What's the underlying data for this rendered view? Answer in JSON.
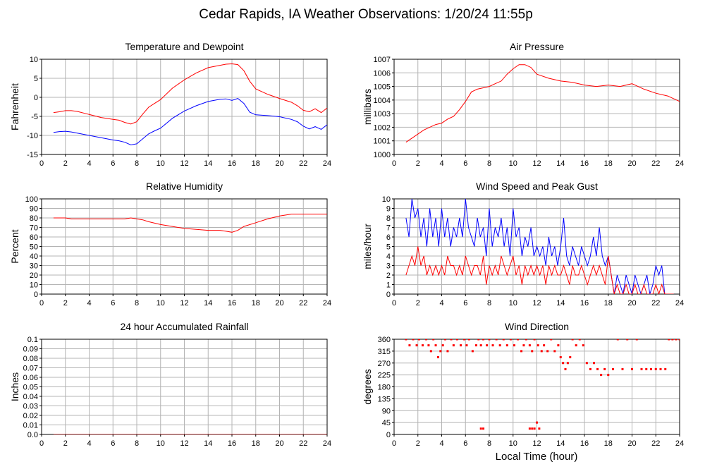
{
  "page": {
    "title": "Cedar Rapids, IA Weather Observations: 1/20/24 11:55p",
    "xlabel": "Local Time (hour)"
  },
  "colors": {
    "red": "#ff0000",
    "blue": "#0000ff",
    "grid": "#b4b4b4",
    "frame": "#000000"
  },
  "chart_data": [
    {
      "type": "line",
      "title": "Temperature and Dewpoint",
      "ylabel": "Fahrenheit",
      "xlim": [
        0,
        24
      ],
      "ylim": [
        -15,
        10
      ],
      "x_ticks": [
        0,
        2,
        4,
        6,
        8,
        10,
        12,
        14,
        16,
        18,
        20,
        22,
        24
      ],
      "y_ticks": [
        -15,
        -10,
        -5,
        0,
        5,
        10
      ],
      "grid": true,
      "legend": "none",
      "series": [
        {
          "color": "#ff0000",
          "x": [
            1.0,
            1.5,
            2.0,
            2.5,
            3.0,
            4.0,
            5.0,
            6.0,
            6.5,
            7.0,
            7.5,
            8.0,
            8.5,
            9.0,
            9.5,
            10.0,
            11.0,
            12.0,
            13.0,
            14.0,
            15.0,
            15.5,
            16.0,
            16.5,
            17.0,
            17.5,
            18.0,
            19.0,
            20.0,
            21.0,
            21.5,
            22.0,
            22.5,
            23.0,
            23.5,
            24.0
          ],
          "y": [
            -4.0,
            -3.8,
            -3.5,
            -3.5,
            -3.7,
            -4.5,
            -5.3,
            -5.8,
            -6.0,
            -6.6,
            -7.0,
            -6.4,
            -4.4,
            -2.6,
            -1.6,
            -0.6,
            2.4,
            4.6,
            6.4,
            7.8,
            8.4,
            8.7,
            8.8,
            8.6,
            7.0,
            4.2,
            2.2,
            0.8,
            -0.3,
            -1.3,
            -2.2,
            -3.4,
            -3.8,
            -3.0,
            -4.0,
            -2.8
          ]
        },
        {
          "color": "#0000ff",
          "x": [
            1.0,
            1.5,
            2.0,
            2.5,
            3.0,
            4.0,
            5.0,
            6.0,
            6.5,
            7.0,
            7.5,
            8.0,
            8.5,
            9.0,
            9.5,
            10.0,
            11.0,
            12.0,
            13.0,
            14.0,
            15.0,
            15.5,
            16.0,
            16.5,
            17.0,
            17.5,
            18.0,
            19.0,
            20.0,
            21.0,
            21.5,
            22.0,
            22.5,
            23.0,
            23.5,
            24.0
          ],
          "y": [
            -9.2,
            -9.0,
            -8.9,
            -9.1,
            -9.4,
            -10.0,
            -10.6,
            -11.2,
            -11.4,
            -11.8,
            -12.5,
            -12.2,
            -10.9,
            -9.6,
            -8.8,
            -8.1,
            -5.5,
            -3.6,
            -2.2,
            -1.1,
            -0.5,
            -0.4,
            -0.8,
            -0.3,
            -1.6,
            -3.9,
            -4.6,
            -4.8,
            -5.1,
            -5.8,
            -6.4,
            -7.6,
            -8.3,
            -7.7,
            -8.4,
            -7.2
          ]
        }
      ]
    },
    {
      "type": "line",
      "title": "Air Pressure",
      "ylabel": "millibars",
      "xlim": [
        0,
        24
      ],
      "ylim": [
        1000,
        1007
      ],
      "x_ticks": [
        0,
        2,
        4,
        6,
        8,
        10,
        12,
        14,
        16,
        18,
        20,
        22,
        24
      ],
      "y_ticks": [
        1000,
        1001,
        1002,
        1003,
        1004,
        1005,
        1006,
        1007
      ],
      "grid": true,
      "legend": "none",
      "series": [
        {
          "color": "#ff0000",
          "x": [
            1.0,
            1.5,
            2.0,
            2.5,
            3.0,
            3.5,
            4.0,
            4.5,
            5.0,
            5.5,
            6.0,
            6.5,
            7.0,
            7.5,
            8.0,
            8.5,
            9.0,
            9.5,
            10.0,
            10.5,
            11.0,
            11.5,
            12.0,
            13.0,
            14.0,
            15.0,
            16.0,
            17.0,
            18.0,
            19.0,
            20.0,
            21.0,
            22.0,
            23.0,
            24.0
          ],
          "y": [
            1000.9,
            1001.2,
            1001.5,
            1001.8,
            1002.0,
            1002.2,
            1002.3,
            1002.6,
            1002.8,
            1003.3,
            1003.9,
            1004.6,
            1004.8,
            1004.9,
            1005.0,
            1005.2,
            1005.4,
            1005.9,
            1006.3,
            1006.6,
            1006.6,
            1006.4,
            1005.9,
            1005.6,
            1005.4,
            1005.3,
            1005.1,
            1005.0,
            1005.1,
            1005.0,
            1005.2,
            1004.8,
            1004.5,
            1004.3,
            1003.9
          ]
        }
      ]
    },
    {
      "type": "line",
      "title": "Relative Humidity",
      "ylabel": "Percent",
      "xlim": [
        0,
        24
      ],
      "ylim": [
        0,
        100
      ],
      "x_ticks": [
        0,
        2,
        4,
        6,
        8,
        10,
        12,
        14,
        16,
        18,
        20,
        22,
        24
      ],
      "y_ticks": [
        0,
        10,
        20,
        30,
        40,
        50,
        60,
        70,
        80,
        90,
        100
      ],
      "grid": true,
      "legend": "none",
      "series": [
        {
          "color": "#ff0000",
          "x": [
            1.0,
            2.0,
            2.5,
            3.0,
            4.0,
            5.0,
            6.0,
            7.0,
            7.5,
            8.0,
            8.5,
            9.0,
            10.0,
            11.0,
            12.0,
            13.0,
            14.0,
            15.0,
            15.5,
            16.0,
            16.5,
            17.0,
            18.0,
            19.0,
            20.0,
            21.0,
            22.0,
            23.0,
            24.0
          ],
          "y": [
            80,
            80,
            79,
            79,
            79,
            79,
            79,
            79,
            80,
            79,
            78,
            76,
            73,
            71,
            69,
            68,
            67,
            67,
            66,
            65,
            67,
            71,
            75,
            79,
            82,
            84,
            84,
            84,
            84
          ]
        }
      ]
    },
    {
      "type": "line",
      "title": "Wind Speed and Peak Gust",
      "ylabel": "miles/hour",
      "xlim": [
        0,
        24
      ],
      "ylim": [
        0,
        10
      ],
      "x_ticks": [
        0,
        2,
        4,
        6,
        8,
        10,
        12,
        14,
        16,
        18,
        20,
        22,
        24
      ],
      "y_ticks": [
        0,
        1,
        2,
        3,
        4,
        5,
        6,
        7,
        8,
        9,
        10
      ],
      "grid": true,
      "legend": "none",
      "series": [
        {
          "color": "#0000ff",
          "x": [
            1.0,
            1.25,
            1.5,
            1.75,
            2.0,
            2.25,
            2.5,
            2.75,
            3.0,
            3.25,
            3.5,
            3.75,
            4.0,
            4.25,
            4.5,
            4.75,
            5.0,
            5.25,
            5.5,
            5.75,
            6.0,
            6.25,
            6.5,
            6.75,
            7.0,
            7.25,
            7.5,
            7.75,
            8.0,
            8.25,
            8.5,
            8.75,
            9.0,
            9.25,
            9.5,
            9.75,
            10.0,
            10.25,
            10.5,
            10.75,
            11.0,
            11.25,
            11.5,
            11.75,
            12.0,
            12.25,
            12.5,
            12.75,
            13.0,
            13.25,
            13.5,
            13.75,
            14.0,
            14.25,
            14.5,
            14.75,
            15.0,
            15.25,
            15.5,
            15.75,
            16.0,
            16.25,
            16.5,
            16.75,
            17.0,
            17.25,
            17.5,
            17.75,
            18.0,
            18.25,
            18.5,
            18.75,
            19.0,
            19.25,
            19.5,
            19.75,
            20.0,
            20.25,
            20.5,
            20.75,
            21.0,
            21.25,
            21.5,
            21.75,
            22.0,
            22.25,
            22.5,
            22.75,
            23.0,
            23.25,
            23.5
          ],
          "y": [
            8,
            6,
            10,
            8,
            9,
            6,
            8,
            5,
            9,
            6,
            8,
            5,
            9,
            6,
            8,
            5,
            7,
            6,
            8,
            6,
            10,
            7,
            6,
            5,
            8,
            6,
            7,
            4,
            9,
            5,
            7,
            6,
            8,
            5,
            7,
            4,
            9,
            6,
            7,
            4,
            6,
            5,
            7,
            4,
            5,
            4,
            5,
            3,
            6,
            4,
            5,
            3,
            5,
            8,
            4,
            3,
            5,
            4,
            3,
            5,
            4,
            3,
            4,
            6,
            4,
            7,
            4,
            3,
            4,
            2,
            0,
            2,
            1,
            0,
            2,
            1,
            0,
            2,
            1,
            0,
            1,
            2,
            0,
            1,
            3,
            2,
            3,
            0,
            0,
            0,
            0
          ]
        },
        {
          "color": "#ff0000",
          "x": [
            1.0,
            1.25,
            1.5,
            1.75,
            2.0,
            2.25,
            2.5,
            2.75,
            3.0,
            3.25,
            3.5,
            3.75,
            4.0,
            4.25,
            4.5,
            4.75,
            5.0,
            5.25,
            5.5,
            5.75,
            6.0,
            6.25,
            6.5,
            6.75,
            7.0,
            7.25,
            7.5,
            7.75,
            8.0,
            8.25,
            8.5,
            8.75,
            9.0,
            9.25,
            9.5,
            9.75,
            10.0,
            10.25,
            10.5,
            10.75,
            11.0,
            11.25,
            11.5,
            11.75,
            12.0,
            12.25,
            12.5,
            12.75,
            13.0,
            13.25,
            13.5,
            13.75,
            14.0,
            14.25,
            14.5,
            14.75,
            15.0,
            15.25,
            15.5,
            15.75,
            16.0,
            16.25,
            16.5,
            16.75,
            17.0,
            17.25,
            17.5,
            17.75,
            18.0,
            18.25,
            18.5,
            18.75,
            19.0,
            19.25,
            19.5,
            19.75,
            20.0,
            20.25,
            20.5,
            20.75,
            21.0,
            21.25,
            21.5,
            21.75,
            22.0,
            22.25,
            22.5,
            22.75,
            23.0,
            23.25,
            23.5
          ],
          "y": [
            2,
            3,
            4,
            3,
            5,
            3,
            4,
            2,
            3,
            2,
            3,
            2,
            3,
            2,
            4,
            3,
            3,
            2,
            3,
            2,
            4,
            3,
            2,
            3,
            3,
            2,
            4,
            1,
            3,
            2,
            3,
            2,
            4,
            3,
            2,
            3,
            4,
            2,
            3,
            1,
            3,
            2,
            3,
            2,
            3,
            2,
            3,
            1,
            3,
            2,
            3,
            2,
            2,
            3,
            2,
            1,
            3,
            2,
            2,
            3,
            2,
            1,
            2,
            3,
            2,
            3,
            2,
            1,
            4,
            2,
            0,
            1,
            0,
            0,
            1,
            0,
            0,
            1,
            0,
            0,
            1,
            0,
            0,
            0,
            1,
            0,
            1,
            0,
            0,
            0,
            0
          ]
        }
      ]
    },
    {
      "type": "line",
      "title": "24 hour Accumulated Rainfall",
      "ylabel": "Inches",
      "xlim": [
        0,
        24
      ],
      "ylim": [
        0,
        0.1
      ],
      "x_ticks": [
        0,
        2,
        4,
        6,
        8,
        10,
        12,
        14,
        16,
        18,
        20,
        22,
        24
      ],
      "y_ticks": [
        "0.0",
        "0.01",
        "0.02",
        "0.03",
        "0.04",
        "0.05",
        "0.06",
        "0.07",
        "0.08",
        "0.09",
        "0.1"
      ],
      "grid": true,
      "legend": "none",
      "series": [
        {
          "color": "#ff0000",
          "x": [
            1.0,
            24.0
          ],
          "y": [
            0.0,
            0.0
          ]
        }
      ]
    },
    {
      "type": "scatter",
      "title": "Wind Direction",
      "ylabel": "degrees",
      "xlabel": "Local Time (hour)",
      "xlim": [
        0,
        24
      ],
      "ylim": [
        0,
        360
      ],
      "x_ticks": [
        0,
        2,
        4,
        6,
        8,
        10,
        12,
        14,
        16,
        18,
        20,
        22,
        24
      ],
      "y_ticks": [
        0,
        45,
        90,
        135,
        180,
        225,
        270,
        315,
        360
      ],
      "grid": true,
      "legend": "none",
      "series": [
        {
          "color": "#ff0000",
          "x": [
            1.0,
            1.3,
            1.6,
            1.9,
            2.1,
            2.4,
            2.7,
            2.9,
            3.1,
            3.3,
            3.5,
            3.7,
            3.9,
            4.1,
            4.3,
            4.5,
            4.8,
            5.0,
            5.3,
            5.6,
            5.9,
            6.1,
            6.3,
            6.6,
            6.9,
            7.1,
            7.3,
            7.5,
            7.8,
            8.0,
            8.3,
            8.6,
            8.9,
            9.2,
            9.5,
            9.8,
            10.1,
            10.4,
            10.7,
            10.9,
            11.1,
            11.4,
            11.6,
            11.8,
            12.1,
            12.4,
            12.6,
            12.9,
            13.2,
            13.5,
            13.8,
            14.0,
            14.2,
            14.4,
            14.6,
            14.8,
            15.0,
            15.3,
            15.6,
            15.9,
            16.2,
            16.5,
            16.8,
            17.1,
            17.4,
            17.7,
            18.0,
            18.4,
            18.8,
            19.2,
            19.6,
            20.0,
            20.4,
            20.8,
            21.2,
            21.6,
            22.0,
            22.4,
            22.8,
            23.1,
            23.4,
            23.7,
            24.0,
            7.3,
            7.5,
            11.4,
            11.6,
            11.8,
            12.0,
            12.2
          ],
          "y": [
            360,
            337,
            360,
            337,
            360,
            337,
            360,
            337,
            315,
            360,
            337,
            292,
            315,
            337,
            360,
            315,
            360,
            337,
            360,
            337,
            360,
            337,
            360,
            315,
            337,
            360,
            337,
            360,
            337,
            360,
            337,
            360,
            337,
            360,
            337,
            360,
            337,
            360,
            315,
            337,
            360,
            337,
            315,
            360,
            337,
            315,
            337,
            315,
            360,
            315,
            337,
            292,
            270,
            247,
            270,
            292,
            360,
            337,
            360,
            337,
            270,
            247,
            270,
            247,
            225,
            247,
            225,
            247,
            360,
            247,
            360,
            247,
            360,
            247,
            247,
            247,
            247,
            247,
            247,
            360,
            360,
            360,
            360,
            22,
            22,
            22,
            22,
            22,
            45,
            22
          ]
        }
      ]
    }
  ]
}
